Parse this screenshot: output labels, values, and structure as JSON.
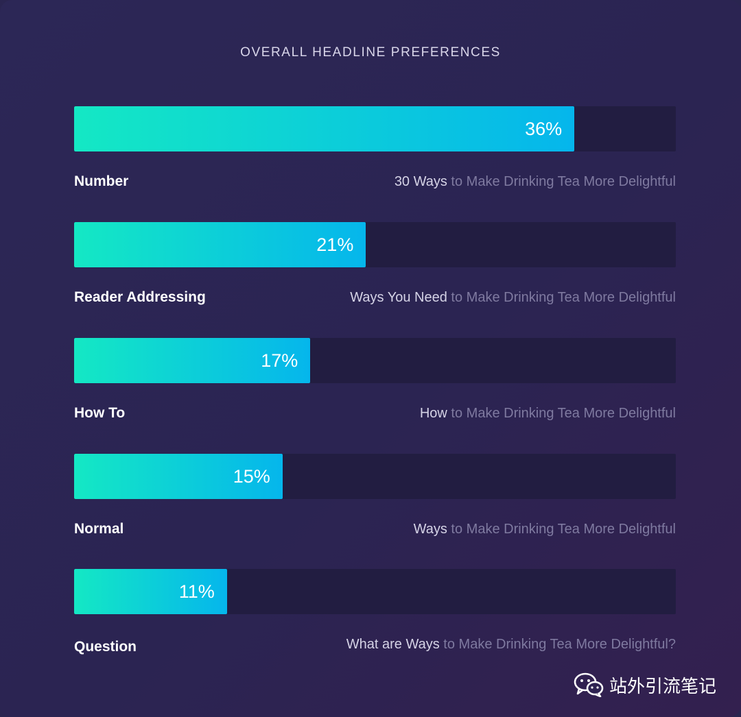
{
  "chart_data": {
    "type": "bar",
    "orientation": "horizontal",
    "title": "OVERALL HEADLINE PREFERENCES",
    "xlim": [
      0,
      43.3
    ],
    "categories": [
      "Number",
      "Reader Addressing",
      "How To",
      "Normal",
      "Question"
    ],
    "values": [
      36,
      21,
      17,
      15,
      11
    ],
    "value_labels": [
      "36%",
      "21%",
      "17%",
      "15%",
      "11%"
    ],
    "examples": [
      {
        "highlight": "30 Ways",
        "rest": " to Make Drinking Tea More Delightful"
      },
      {
        "highlight": "Ways You Need",
        "rest": " to Make Drinking Tea More Delightful"
      },
      {
        "highlight": "How",
        "rest": " to Make Drinking Tea More Delightful"
      },
      {
        "highlight": "Ways",
        "rest": " to Make Drinking Tea More Delightful"
      },
      {
        "highlight": "What are Ways",
        "rest": " to Make Drinking Tea More Delightful?"
      }
    ]
  },
  "colors": {
    "bar_start": "#14e8c4",
    "bar_end": "#05b6ec",
    "track": "#221d41"
  },
  "watermark": {
    "icon": "wechat-icon",
    "text": "站外引流笔记"
  }
}
